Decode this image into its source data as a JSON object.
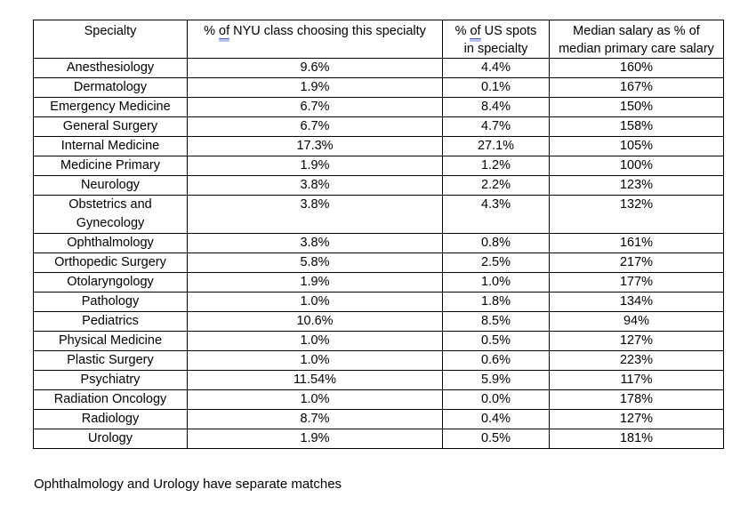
{
  "header": {
    "specialty": "Specialty",
    "nyu_pre": "% ",
    "nyu_marked": "of",
    "nyu_post": " NYU class choosing this specialty",
    "us_pre": "% ",
    "us_marked": "of",
    "us_post": " US spots",
    "us_line2": "in specialty",
    "salary_line1": "Median salary as % of",
    "salary_line2": "median primary care salary"
  },
  "rows": [
    {
      "specialty": "Anesthesiology",
      "nyu": "9.6%",
      "us": "4.4%",
      "salary": "160%"
    },
    {
      "specialty": "Dermatology",
      "nyu": "1.9%",
      "us": "0.1%",
      "salary": "167%"
    },
    {
      "specialty": "Emergency Medicine",
      "nyu": "6.7%",
      "us": "8.4%",
      "salary": "150%"
    },
    {
      "specialty": "General Surgery",
      "nyu": "6.7%",
      "us": "4.7%",
      "salary": "158%"
    },
    {
      "specialty": "Internal Medicine",
      "nyu": "17.3%",
      "us": "27.1%",
      "salary": "105%"
    },
    {
      "specialty": "Medicine Primary",
      "nyu": "1.9%",
      "us": "1.2%",
      "salary": "100%"
    },
    {
      "specialty": "Neurology",
      "nyu": "3.8%",
      "us": "2.2%",
      "salary": "123%"
    },
    {
      "specialty": "Obstetrics and Gynecology",
      "nyu": "3.8%",
      "us": "4.3%",
      "salary": "132%"
    },
    {
      "specialty": "Ophthalmology",
      "nyu": "3.8%",
      "us": "0.8%",
      "salary": "161%"
    },
    {
      "specialty": "Orthopedic Surgery",
      "nyu": "5.8%",
      "us": "2.5%",
      "salary": "217%"
    },
    {
      "specialty": "Otolaryngology",
      "nyu": "1.9%",
      "us": "1.0%",
      "salary": "177%"
    },
    {
      "specialty": "Pathology",
      "nyu": "1.0%",
      "us": "1.8%",
      "salary": "134%"
    },
    {
      "specialty": "Pediatrics",
      "nyu": "10.6%",
      "us": "8.5%",
      "salary": "94%"
    },
    {
      "specialty": "Physical Medicine",
      "nyu": "1.0%",
      "us": "0.5%",
      "salary": "127%"
    },
    {
      "specialty": "Plastic Surgery",
      "nyu": "1.0%",
      "us": "0.6%",
      "salary": "223%"
    },
    {
      "specialty": "Psychiatry",
      "nyu": "11.54%",
      "us": "5.9%",
      "salary": "117%"
    },
    {
      "specialty": "Radiation Oncology",
      "nyu": "1.0%",
      "us": "0.0%",
      "salary": "178%"
    },
    {
      "specialty": "Radiology",
      "nyu": "8.7%",
      "us": "0.4%",
      "salary": "127%"
    },
    {
      "specialty": "Urology",
      "nyu": "1.9%",
      "us": "0.5%",
      "salary": "181%"
    }
  ],
  "footnote": "Ophthalmology and Urology have separate matches",
  "colors": {
    "border": "#000000",
    "text": "#000000",
    "background": "#ffffff",
    "grammar_underline": "#5568c4",
    "grammar_band": "#b6c3ec"
  }
}
